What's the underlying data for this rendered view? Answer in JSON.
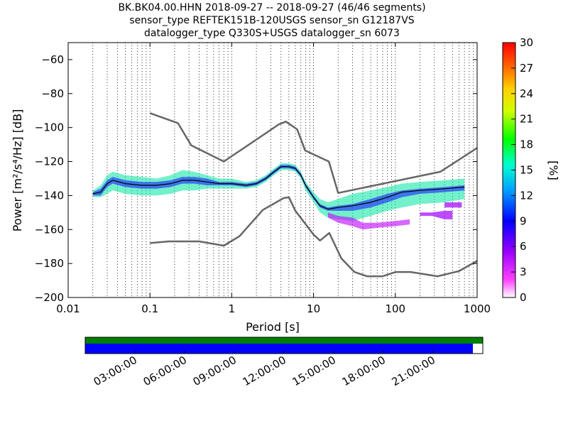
{
  "title": {
    "line1": "BK.BK04.00.HHN   2018-09-27 -- 2018-09-27  (46/46 segments)",
    "line2": "sensor_type REFTEK151B-120USGS sensor_sn G12187VS",
    "line3": "datalogger_type Q330S+USGS datalogger_sn 6073"
  },
  "chart_data": {
    "type": "heatmap",
    "xlabel": "Period [s]",
    "ylabel": "Power [m²/s⁴/Hz] [dB]",
    "xscale": "log",
    "xlim": [
      0.01,
      1000
    ],
    "ylim": [
      -200,
      -50
    ],
    "x_ticks": [
      0.01,
      0.1,
      1,
      10,
      100,
      1000
    ],
    "x_tick_labels": [
      "0.01",
      "0.1",
      "1",
      "10",
      "100",
      "1000"
    ],
    "y_ticks": [
      -200,
      -180,
      -160,
      -140,
      -120,
      -100,
      -80,
      -60
    ],
    "y_tick_labels": [
      "−200",
      "−180",
      "−160",
      "−140",
      "−120",
      "−100",
      "−80",
      "−60"
    ],
    "grid": "dotted-vertical",
    "colorbar": {
      "label": "[%]",
      "range": [
        0,
        30
      ],
      "ticks": [
        0,
        3,
        6,
        9,
        12,
        15,
        18,
        21,
        24,
        27,
        30
      ],
      "colors": [
        "#ffffff",
        "#ff00ff",
        "#8a00ff",
        "#0000ff",
        "#00c0ff",
        "#00ff80",
        "#00ff00",
        "#ffff00",
        "#ff8000",
        "#ff0000"
      ]
    },
    "noise_model_high": {
      "period": [
        0.1,
        0.22,
        0.32,
        0.8,
        3.8,
        4.6,
        6.3,
        7.9,
        15.4,
        20,
        354.8,
        1000
      ],
      "power": [
        -91.5,
        -97.4,
        -110.5,
        -120,
        -98,
        -96.5,
        -101,
        -113.5,
        -120,
        -138.5,
        -126,
        -112
      ]
    },
    "noise_model_low": {
      "period": [
        0.1,
        0.17,
        0.4,
        0.8,
        1.24,
        2.4,
        4.3,
        5,
        6,
        10,
        12,
        15.6,
        21.9,
        31.6,
        45,
        70,
        101,
        154,
        328,
        600,
        1000
      ],
      "power": [
        -168,
        -167,
        -167,
        -169.5,
        -164,
        -148.5,
        -141.5,
        -141,
        -149,
        -163,
        -166.5,
        -162,
        -177,
        -185,
        -187.5,
        -187.5,
        -185,
        -185,
        -187.5,
        -184.5,
        -178.5
      ]
    },
    "mode_line": {
      "period": [
        0.02,
        0.025,
        0.03,
        0.035,
        0.05,
        0.08,
        0.12,
        0.18,
        0.25,
        0.35,
        0.5,
        0.7,
        1,
        1.5,
        2,
        2.6,
        3.3,
        4,
        5,
        6,
        7,
        8,
        10,
        12,
        15,
        20,
        30,
        50,
        80,
        120,
        200,
        400,
        700
      ],
      "power": [
        -139,
        -138,
        -133,
        -131,
        -133,
        -134,
        -134,
        -133,
        -131,
        -131,
        -132,
        -133,
        -133,
        -134,
        -133,
        -130,
        -126,
        -123,
        -123,
        -124,
        -128,
        -134,
        -141,
        -146,
        -148,
        -147,
        -146,
        -144,
        -141,
        -138,
        -137,
        -136,
        -135
      ]
    },
    "density_bands": [
      {
        "period": [
          0.02,
          0.025,
          0.03,
          0.035,
          0.05,
          0.08,
          0.12,
          0.18,
          0.25,
          0.35,
          0.5,
          0.7,
          1,
          1.5,
          2,
          2.6,
          3.3,
          4,
          5,
          6,
          7,
          8,
          10,
          12,
          15,
          20,
          30,
          50,
          80,
          120,
          200,
          400,
          700
        ],
        "upper": [
          -137,
          -134,
          -128,
          -126,
          -128,
          -129,
          -130,
          -128,
          -125,
          -126,
          -128,
          -130,
          -130,
          -132,
          -131,
          -128,
          -124,
          -121,
          -121,
          -122,
          -126,
          -132,
          -138,
          -142,
          -144,
          -142,
          -139,
          -137,
          -135,
          -133,
          -132,
          -131,
          -130
        ],
        "lower": [
          -141,
          -141,
          -139,
          -137,
          -139,
          -140,
          -140,
          -139,
          -137,
          -137,
          -136,
          -136,
          -136,
          -136,
          -135,
          -132,
          -128,
          -125,
          -125,
          -126,
          -130,
          -137,
          -144,
          -150,
          -153,
          -154,
          -155,
          -152,
          -149,
          -147,
          -145,
          -144,
          -142
        ],
        "color": "#00e6a0",
        "opacity": 0.55
      },
      {
        "period": [
          0.02,
          0.025,
          0.03,
          0.035,
          0.05,
          0.08,
          0.12,
          0.18,
          0.25,
          0.35,
          0.5,
          0.7,
          1,
          1.5,
          2,
          2.6,
          3.3,
          4,
          5,
          6,
          7,
          8,
          10,
          12,
          15,
          20,
          30,
          50,
          80,
          120,
          200,
          400,
          700
        ],
        "upper": [
          -138,
          -136,
          -131,
          -129,
          -131,
          -132,
          -132,
          -131,
          -129,
          -129,
          -130,
          -132,
          -132,
          -133,
          -132,
          -129,
          -125,
          -122,
          -122,
          -123,
          -127,
          -133,
          -140,
          -145,
          -147,
          -146,
          -145,
          -142,
          -139,
          -137,
          -136,
          -135,
          -134
        ],
        "lower": [
          -140,
          -140,
          -135,
          -133,
          -135,
          -136,
          -136,
          -135,
          -133,
          -133,
          -134,
          -134,
          -134,
          -135,
          -134,
          -131,
          -127,
          -124,
          -124,
          -125,
          -129,
          -135,
          -142,
          -147,
          -149,
          -149,
          -149,
          -147,
          -144,
          -141,
          -139,
          -138,
          -137
        ],
        "color": "#1a20ff",
        "opacity": 0.6
      },
      {
        "period": [
          15,
          20,
          30,
          40,
          60,
          100,
          150
        ],
        "upper": [
          -150,
          -152,
          -153,
          -156,
          -156,
          -155,
          -154
        ],
        "lower": [
          -153,
          -156,
          -158,
          -160,
          -159,
          -158,
          -157
        ],
        "color": "#c000ff",
        "opacity": 0.6
      },
      {
        "period": [
          400,
          500,
          600,
          650
        ],
        "upper": [
          -144,
          -144,
          -144,
          -144
        ],
        "lower": [
          -147,
          -147,
          -147,
          -147
        ],
        "color": "#a000ff",
        "opacity": 0.7
      },
      {
        "period": [
          200,
          280,
          400,
          500
        ],
        "upper": [
          -150,
          -150,
          -149,
          -149
        ],
        "lower": [
          -152,
          -152,
          -154,
          -154
        ],
        "color": "#a000ff",
        "opacity": 0.7
      }
    ],
    "timeline": {
      "tick_labels": [
        "03:00:00",
        "06:00:00",
        "09:00:00",
        "12:00:00",
        "15:00:00",
        "18:00:00",
        "21:00:00"
      ],
      "coverage_fraction": 0.975,
      "colors": {
        "top": "#008000",
        "bottom": "#0000ff"
      }
    }
  }
}
